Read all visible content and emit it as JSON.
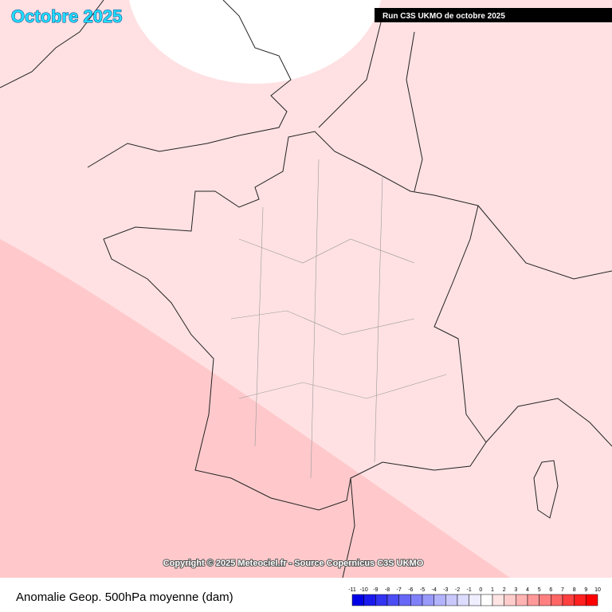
{
  "title": "Octobre 2025",
  "run_label": "Run C3S UKMO de octobre 2025",
  "copyright": "Copyright © 2025 Meteociel.fr - Source Copernicus C3S UKMO",
  "footer": "Anomalie Geop. 500hPa moyenne (dam)",
  "legend": {
    "ticks": [
      -11,
      -10,
      -9,
      -8,
      -7,
      -6,
      -5,
      -4,
      -3,
      -2,
      -1,
      0,
      1,
      2,
      3,
      4,
      5,
      6,
      7,
      8,
      9,
      10
    ],
    "colors": [
      "#0000e6",
      "#1a1aee",
      "#3333f2",
      "#4d4df5",
      "#6666f7",
      "#8080f9",
      "#9999fa",
      "#b3b3fc",
      "#c8c8fd",
      "#dcdcfe",
      "#eeeeff",
      "#ffffff",
      "#ffe4e4",
      "#ffcccc",
      "#ffb3b3",
      "#ff9999",
      "#ff8080",
      "#ff6666",
      "#ff4040",
      "#ff2020",
      "#ff0000"
    ]
  }
}
